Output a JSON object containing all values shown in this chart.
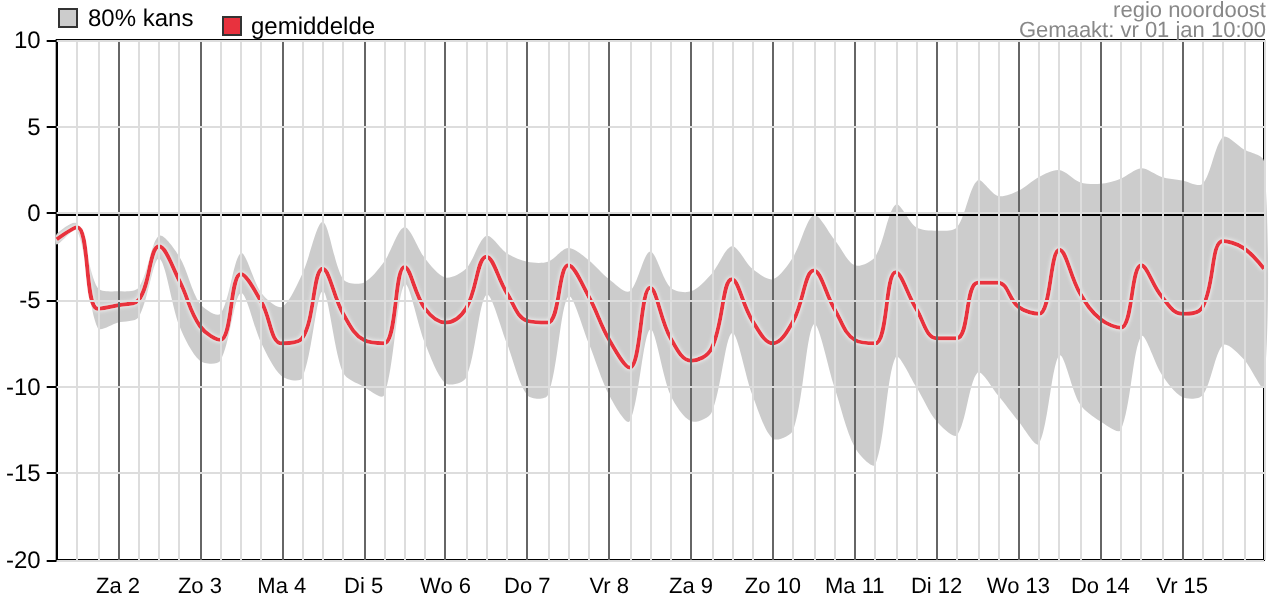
{
  "chart_data": {
    "type": "line",
    "annotations": [
      "80% kans",
      "regio noordoost",
      "Gemaakt: vr 01 jan 10:00"
    ],
    "categories": [
      null,
      null,
      null,
      "Za 2",
      null,
      null,
      null,
      "Zo 3",
      null,
      null,
      null,
      "Ma 4",
      null,
      null,
      null,
      "Di 5",
      null,
      null,
      null,
      "Wo 6",
      null,
      null,
      null,
      "Do 7",
      null,
      null,
      null,
      "Vr 8",
      null,
      null,
      null,
      "Za 9",
      null,
      null,
      null,
      "Zo 10",
      null,
      null,
      null,
      "Ma 11",
      null,
      null,
      null,
      "Di 12",
      null,
      null,
      null,
      "Wo 13",
      null,
      null,
      null,
      "Do 14",
      null,
      null,
      null,
      "Vr 15",
      null,
      null,
      null,
      null
    ],
    "series": [
      {
        "name": "gemiddelde",
        "color": "#e8323e",
        "values": [
          -1.5,
          -0.8,
          -5.5,
          -5.3,
          -5.0,
          -1.9,
          -3.9,
          -6.5,
          -7.3,
          -3.5,
          -5.1,
          -7.5,
          -7.2,
          -3.2,
          -5.8,
          -7.3,
          -7.5,
          -3.1,
          -5.5,
          -6.3,
          -5.5,
          -2.5,
          -4.6,
          -6.2,
          -6.3,
          -3.0,
          -4.8,
          -7.3,
          -8.9,
          -4.3,
          -7.2,
          -8.5,
          -7.8,
          -3.8,
          -6.2,
          -7.5,
          -6.2,
          -3.3,
          -5.5,
          -7.3,
          -7.5,
          -3.4,
          -5.5,
          -7.2,
          -7.2,
          -4.0,
          -4.0,
          -5.4,
          -5.8,
          -2.1,
          -4.6,
          -6.1,
          -6.6,
          -3.0,
          -4.8,
          -5.8,
          -5.4,
          -1.6,
          -2.0,
          -3.2
        ],
        "upper": [
          -1.2,
          -0.6,
          -4.3,
          -4.5,
          -4.3,
          -1.3,
          -2.5,
          -5.2,
          -5.8,
          -2.3,
          -4.6,
          -5.4,
          -3.5,
          -0.5,
          -3.8,
          -4.0,
          -2.8,
          -0.8,
          -2.6,
          -3.7,
          -3.2,
          -1.3,
          -2.3,
          -2.8,
          -2.8,
          -2.0,
          -2.7,
          -3.8,
          -4.5,
          -2.2,
          -4.3,
          -4.5,
          -3.5,
          -1.9,
          -3.2,
          -3.8,
          -2.5,
          -0.1,
          -1.5,
          -3.0,
          -2.5,
          0.5,
          -0.8,
          -1.0,
          -0.8,
          1.9,
          1.0,
          1.3,
          2.1,
          2.5,
          1.8,
          1.7,
          2.0,
          2.6,
          2.1,
          1.9,
          1.7,
          4.4,
          3.7,
          3.0
        ],
        "lower": [
          -1.8,
          -1.0,
          -6.6,
          -6.3,
          -6.0,
          -2.6,
          -6.5,
          -8.5,
          -8.5,
          -4.6,
          -7.5,
          -9.4,
          -9.5,
          -4.5,
          -9.2,
          -10.0,
          -10.5,
          -4.1,
          -7.5,
          -9.8,
          -9.5,
          -4.7,
          -7.5,
          -10.5,
          -10.5,
          -4.8,
          -7.5,
          -10.5,
          -12.0,
          -6.7,
          -10.5,
          -12.0,
          -11.5,
          -6.9,
          -10.5,
          -13.0,
          -12.5,
          -6.4,
          -10.0,
          -13.5,
          -14.5,
          -8.3,
          -10.0,
          -12.0,
          -12.8,
          -9.2,
          -10.5,
          -12.0,
          -13.3,
          -8.2,
          -11.0,
          -12.0,
          -12.5,
          -7.1,
          -9.3,
          -10.6,
          -10.5,
          -7.6,
          -8.4,
          -10.0
        ]
      }
    ],
    "ylim": [
      -20,
      10
    ],
    "yticks": [
      -20,
      -15,
      -10,
      -5,
      0,
      5,
      10
    ],
    "ref_lines": [
      {
        "axis": "y",
        "value": 0,
        "color": "#000000"
      }
    ],
    "grid": true,
    "legend": "top left",
    "marker": "none",
    "line_style": "solid"
  }
}
